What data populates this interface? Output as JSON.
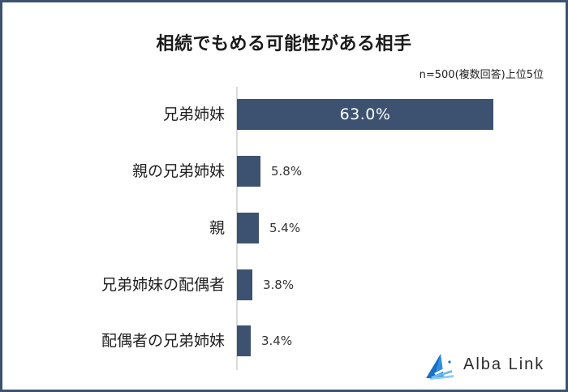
{
  "title": "相続でもめる可能性がある相手",
  "note": "n=500(複数回答)上位5位",
  "brand": {
    "name": "Alba Link",
    "icon": "alba-link-logo-icon"
  },
  "colors": {
    "bar": "#3d5270",
    "border": "#3d5270",
    "axis": "#d9d9d9",
    "logo_blue": "#1a73c8"
  },
  "chart_data": {
    "type": "bar",
    "orientation": "horizontal",
    "title": "相続でもめる可能性がある相手",
    "subtitle": "n=500(複数回答)上位5位",
    "categories": [
      "兄弟姉妹",
      "親の兄弟姉妹",
      "親",
      "兄弟姉妹の配偶者",
      "配偶者の兄弟姉妹"
    ],
    "values": [
      63.0,
      5.8,
      5.4,
      3.8,
      3.4
    ],
    "value_labels": [
      "63.0%",
      "5.8%",
      "5.4%",
      "3.8%",
      "3.4%"
    ],
    "unit": "%",
    "xlabel": "",
    "ylabel": "",
    "xlim": [
      0,
      63
    ],
    "grid": false,
    "legend": "none"
  },
  "rows": [
    {
      "label": "兄弟姉妹",
      "value": "63.0%",
      "pct": 63.0,
      "inside": true
    },
    {
      "label": "親の兄弟姉妹",
      "value": "5.8%",
      "pct": 5.8,
      "inside": false
    },
    {
      "label": "親",
      "value": "5.4%",
      "pct": 5.4,
      "inside": false
    },
    {
      "label": "兄弟姉妹の配偶者",
      "value": "3.8%",
      "pct": 3.8,
      "inside": false
    },
    {
      "label": "配偶者の兄弟姉妹",
      "value": "3.4%",
      "pct": 3.4,
      "inside": false
    }
  ]
}
